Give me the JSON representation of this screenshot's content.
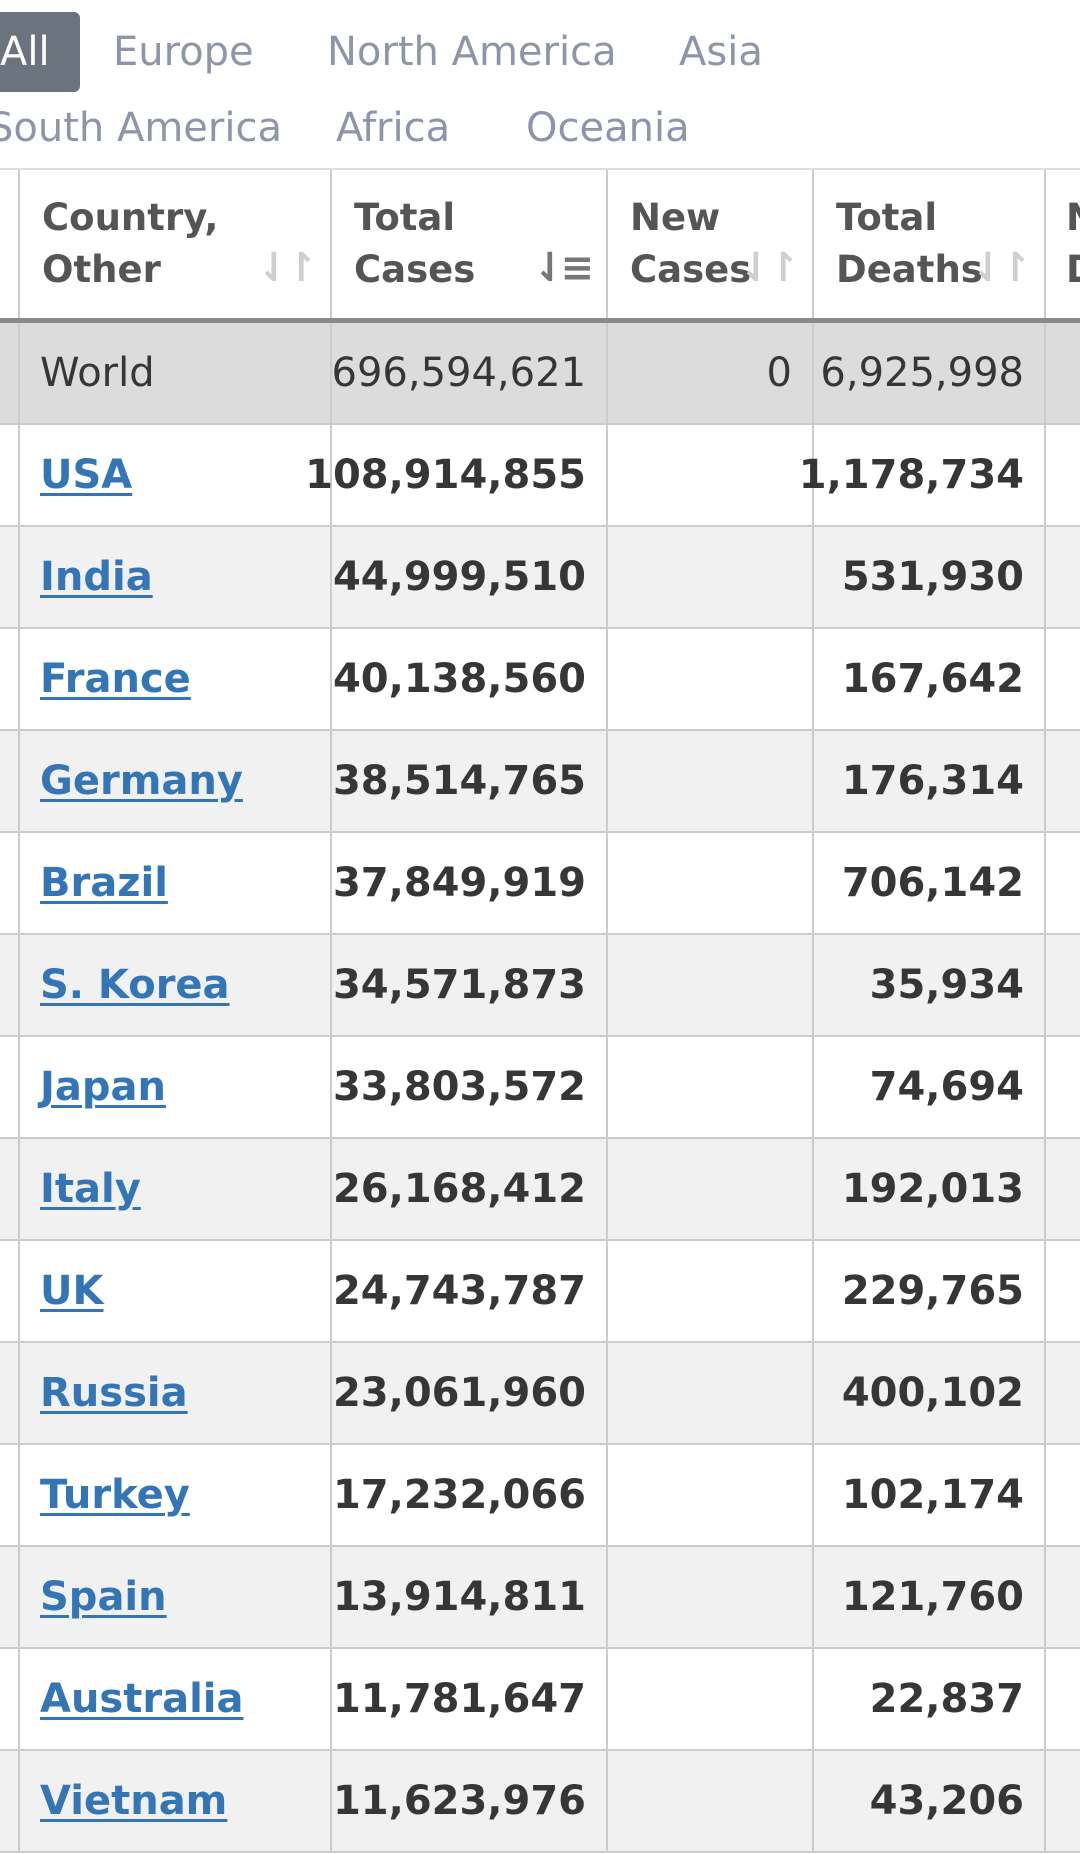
{
  "tabs": [
    {
      "label": "All",
      "active": true
    },
    {
      "label": "Europe"
    },
    {
      "label": "North America"
    },
    {
      "label": "Asia"
    },
    {
      "label": "South America"
    },
    {
      "label": "Africa"
    },
    {
      "label": "Oceania"
    }
  ],
  "headers": {
    "country": [
      "Country,",
      "Other"
    ],
    "total_cases": [
      "Total",
      "Cases"
    ],
    "new_cases": [
      "New",
      "Cases"
    ],
    "total_deaths": [
      "Total",
      "Deaths"
    ],
    "new_deaths": [
      "New",
      "Deaths"
    ]
  },
  "sort_icons": {
    "country": "⇃↾",
    "total_cases": "⇃≡",
    "new_cases": "⇃↾",
    "total_deaths": "⇃↾"
  },
  "world": {
    "name": "World",
    "total_cases": "696,594,621",
    "new_cases": "0",
    "total_deaths": "6,925,998"
  },
  "rows": [
    {
      "name": "USA",
      "total_cases": "108,914,855",
      "new_cases": "",
      "total_deaths": "1,178,734"
    },
    {
      "name": "India",
      "total_cases": "44,999,510",
      "new_cases": "",
      "total_deaths": "531,930"
    },
    {
      "name": "France",
      "total_cases": "40,138,560",
      "new_cases": "",
      "total_deaths": "167,642"
    },
    {
      "name": "Germany",
      "total_cases": "38,514,765",
      "new_cases": "",
      "total_deaths": "176,314"
    },
    {
      "name": "Brazil",
      "total_cases": "37,849,919",
      "new_cases": "",
      "total_deaths": "706,142"
    },
    {
      "name": "S. Korea",
      "total_cases": "34,571,873",
      "new_cases": "",
      "total_deaths": "35,934"
    },
    {
      "name": "Japan",
      "total_cases": "33,803,572",
      "new_cases": "",
      "total_deaths": "74,694"
    },
    {
      "name": "Italy",
      "total_cases": "26,168,412",
      "new_cases": "",
      "total_deaths": "192,013"
    },
    {
      "name": "UK",
      "total_cases": "24,743,787",
      "new_cases": "",
      "total_deaths": "229,765"
    },
    {
      "name": "Russia",
      "total_cases": "23,061,960",
      "new_cases": "",
      "total_deaths": "400,102"
    },
    {
      "name": "Turkey",
      "total_cases": "17,232,066",
      "new_cases": "",
      "total_deaths": "102,174"
    },
    {
      "name": "Spain",
      "total_cases": "13,914,811",
      "new_cases": "",
      "total_deaths": "121,760"
    },
    {
      "name": "Australia",
      "total_cases": "11,781,647",
      "new_cases": "",
      "total_deaths": "22,837"
    },
    {
      "name": "Vietnam",
      "total_cases": "11,623,976",
      "new_cases": "",
      "total_deaths": "43,206"
    }
  ],
  "colors": {
    "link": "#3375b5",
    "active_tab": "#6b737e",
    "tab_text": "#8f95a8",
    "world_row": "#dcdcdc",
    "alt_row": "#f1f1f1"
  }
}
